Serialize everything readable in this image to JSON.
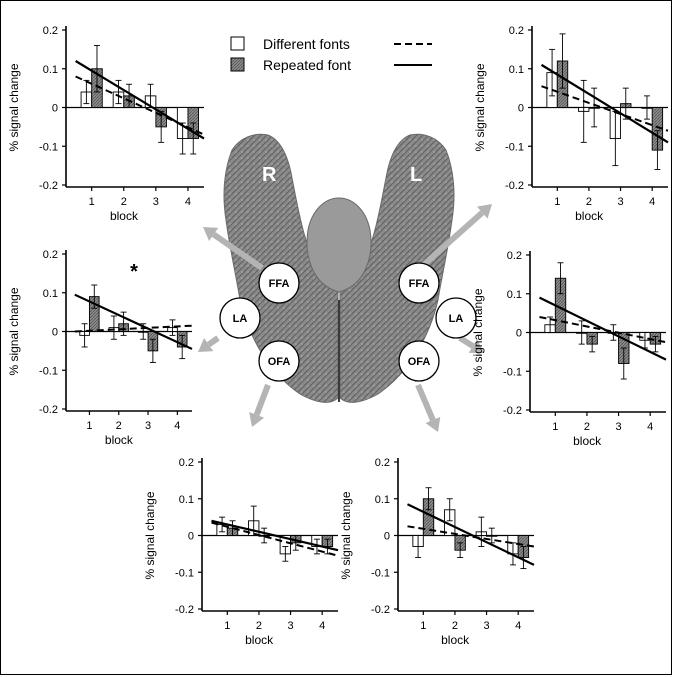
{
  "legend": {
    "different_label": "Different fonts",
    "repeated_label": "Repeated font"
  },
  "brain": {
    "right_label": "R",
    "left_label": "L",
    "rois": {
      "ffa_right": "FFA",
      "la_right": "LA",
      "ofa_right": "OFA",
      "ffa_left": "FFA",
      "la_left": "LA",
      "ofa_left": "OFA"
    }
  },
  "colors": {
    "different_bar": "#ffffff",
    "repeated_bar": "#8c8c8c",
    "arrow": "#b4b4b4",
    "axis": "#000000"
  },
  "chart_data": [
    {
      "id": "r-ffa",
      "type": "bar",
      "categories": [
        "1",
        "2",
        "3",
        "4"
      ],
      "xlabel": "block",
      "ylabel": "% signal change",
      "ylim": [
        -0.2,
        0.2
      ],
      "yticks": [
        "0.2",
        "0.1",
        "0",
        "-0.1",
        "-0.2"
      ],
      "series": [
        {
          "name": "Different fonts",
          "values": [
            0.04,
            0.04,
            0.03,
            -0.08
          ],
          "errors": [
            0.03,
            0.03,
            0.03,
            0.04
          ]
        },
        {
          "name": "Repeated font",
          "values": [
            0.1,
            0.03,
            -0.05,
            -0.08
          ],
          "errors": [
            0.06,
            0.03,
            0.04,
            0.04
          ]
        }
      ],
      "fits": {
        "different": [
          0.08,
          -0.07
        ],
        "repeated": [
          0.12,
          -0.08
        ]
      }
    },
    {
      "id": "r-la",
      "type": "bar",
      "categories": [
        "1",
        "2",
        "3",
        "4"
      ],
      "xlabel": "block",
      "ylabel": "% signal change",
      "ylim": [
        -0.2,
        0.2
      ],
      "yticks": [
        "0.2",
        "0.1",
        "0",
        "-0.1",
        "-0.2"
      ],
      "annotation": "*",
      "series": [
        {
          "name": "Different fonts",
          "values": [
            -0.01,
            0.01,
            0.0,
            0.01
          ],
          "errors": [
            0.03,
            0.03,
            0.02,
            0.02
          ]
        },
        {
          "name": "Repeated font",
          "values": [
            0.09,
            0.02,
            -0.05,
            -0.04
          ],
          "errors": [
            0.03,
            0.03,
            0.03,
            0.03
          ]
        }
      ],
      "fits": {
        "different": [
          0.0,
          0.015
        ],
        "repeated": [
          0.095,
          -0.045
        ]
      }
    },
    {
      "id": "r-ofa",
      "type": "bar",
      "categories": [
        "1",
        "2",
        "3",
        "4"
      ],
      "xlabel": "block",
      "ylabel": "% signal change",
      "ylim": [
        -0.2,
        0.2
      ],
      "yticks": [
        "0.2",
        "0.1",
        "0",
        "-0.1",
        "-0.2"
      ],
      "series": [
        {
          "name": "Different fonts",
          "values": [
            0.03,
            0.04,
            -0.05,
            -0.03
          ],
          "errors": [
            0.02,
            0.04,
            0.02,
            0.02
          ]
        },
        {
          "name": "Repeated font",
          "values": [
            0.02,
            0.0,
            -0.02,
            -0.03
          ],
          "errors": [
            0.02,
            0.02,
            0.02,
            0.02
          ]
        }
      ],
      "fits": {
        "different": [
          0.035,
          -0.055
        ],
        "repeated": [
          0.04,
          -0.04
        ]
      }
    },
    {
      "id": "l-ffa",
      "type": "bar",
      "categories": [
        "1",
        "2",
        "3",
        "4"
      ],
      "xlabel": "block",
      "ylabel": "% signal change",
      "ylim": [
        -0.2,
        0.2
      ],
      "yticks": [
        "0.2",
        "0.1",
        "0",
        "-0.1",
        "-0.2"
      ],
      "series": [
        {
          "name": "Different fonts",
          "values": [
            0.09,
            -0.01,
            -0.08,
            0.0
          ],
          "errors": [
            0.06,
            0.08,
            0.07,
            0.03
          ]
        },
        {
          "name": "Repeated font",
          "values": [
            0.12,
            0.0,
            0.01,
            -0.11
          ],
          "errors": [
            0.07,
            0.05,
            0.04,
            0.05
          ]
        }
      ],
      "fits": {
        "different": [
          0.055,
          -0.06
        ],
        "repeated": [
          0.11,
          -0.09
        ]
      }
    },
    {
      "id": "l-la",
      "type": "bar",
      "categories": [
        "1",
        "2",
        "3",
        "4"
      ],
      "xlabel": "block",
      "ylabel": "% signal change",
      "ylim": [
        -0.2,
        0.2
      ],
      "yticks": [
        "0.2",
        "0.1",
        "0",
        "-0.1",
        "-0.2"
      ],
      "series": [
        {
          "name": "Different fonts",
          "values": [
            0.02,
            0.0,
            0.0,
            -0.02
          ],
          "errors": [
            0.02,
            0.03,
            0.02,
            0.02
          ]
        },
        {
          "name": "Repeated font",
          "values": [
            0.14,
            -0.03,
            -0.08,
            -0.03
          ],
          "errors": [
            0.04,
            0.02,
            0.04,
            0.02
          ]
        }
      ],
      "fits": {
        "different": [
          0.04,
          -0.025
        ],
        "repeated": [
          0.09,
          -0.07
        ]
      }
    },
    {
      "id": "l-ofa",
      "type": "bar",
      "categories": [
        "1",
        "2",
        "3",
        "4"
      ],
      "xlabel": "block",
      "ylabel": "% signal change",
      "ylim": [
        -0.2,
        0.2
      ],
      "yticks": [
        "0.2",
        "0.1",
        "0",
        "-0.1",
        "-0.2"
      ],
      "series": [
        {
          "name": "Different fonts",
          "values": [
            -0.03,
            0.07,
            0.01,
            -0.05
          ],
          "errors": [
            0.03,
            0.03,
            0.04,
            0.03
          ]
        },
        {
          "name": "Repeated font",
          "values": [
            0.1,
            -0.04,
            0.0,
            -0.06
          ],
          "errors": [
            0.03,
            0.02,
            0.02,
            0.03
          ]
        }
      ],
      "fits": {
        "different": [
          0.025,
          -0.03
        ],
        "repeated": [
          0.085,
          -0.08
        ]
      }
    }
  ]
}
